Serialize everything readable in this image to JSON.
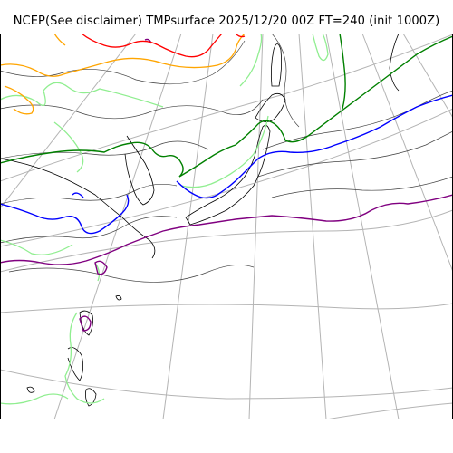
{
  "title": "NCEP(See disclaimer) TMPsurface 2025/12/20 00Z FT=240 (init 1000Z)",
  "map": {
    "variable": "TMPsurface",
    "projection": "polar-stereographic",
    "region": "Japan and East Asia",
    "colors": {
      "background": "#ffffff",
      "graticule": "#b4b4b4",
      "coastline": "#000000",
      "isotherm_minor": "#444444",
      "contour_green_light": "#90ee90",
      "contour_green": "#008000",
      "contour_blue": "#0000ff",
      "contour_purple": "#800080",
      "contour_orange": "#ffa500",
      "contour_red": "#ff0000"
    }
  }
}
